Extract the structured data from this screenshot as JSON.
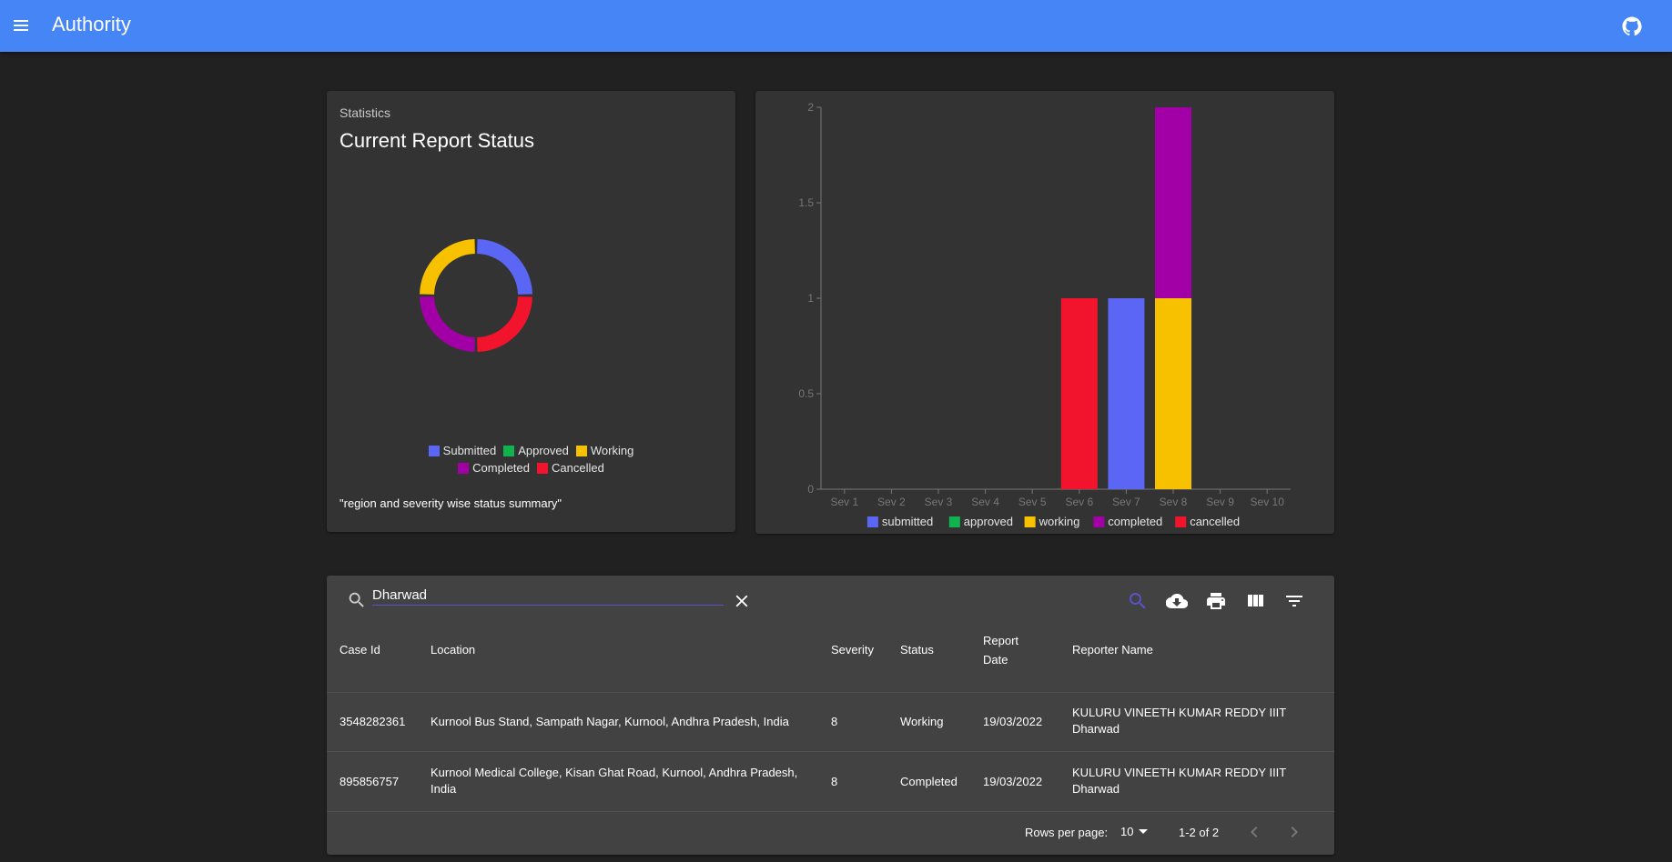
{
  "app": {
    "title": "Authority"
  },
  "stats": {
    "overline": "Statistics",
    "title": "Current Report Status",
    "caption": "\"region and severity wise status summary\"",
    "legend": [
      {
        "label": "Submitted",
        "color": "#5b66f5"
      },
      {
        "label": "Approved",
        "color": "#0fb44f"
      },
      {
        "label": "Working",
        "color": "#f7c100"
      },
      {
        "label": "Completed",
        "color": "#a200a6"
      },
      {
        "label": "Cancelled",
        "color": "#f2132d"
      }
    ]
  },
  "chart_data": [
    {
      "type": "pie",
      "title": "Current Report Status",
      "labels": [
        "Submitted",
        "Approved",
        "Working",
        "Completed",
        "Cancelled"
      ],
      "values": [
        1,
        0,
        1,
        1,
        1
      ],
      "colors": [
        "#5b66f5",
        "#0fb44f",
        "#f7c100",
        "#a200a6",
        "#f2132d"
      ]
    },
    {
      "type": "bar",
      "stacked": true,
      "categories": [
        "Sev 1",
        "Sev 2",
        "Sev 3",
        "Sev 4",
        "Sev 5",
        "Sev 6",
        "Sev 7",
        "Sev 8",
        "Sev 9",
        "Sev 10"
      ],
      "series": [
        {
          "name": "submitted",
          "color": "#5b66f5",
          "values": [
            0,
            0,
            0,
            0,
            0,
            0,
            1,
            0,
            0,
            0
          ]
        },
        {
          "name": "approved",
          "color": "#0fb44f",
          "values": [
            0,
            0,
            0,
            0,
            0,
            0,
            0,
            0,
            0,
            0
          ]
        },
        {
          "name": "working",
          "color": "#f7c100",
          "values": [
            0,
            0,
            0,
            0,
            0,
            0,
            0,
            1,
            0,
            0
          ]
        },
        {
          "name": "completed",
          "color": "#a200a6",
          "values": [
            0,
            0,
            0,
            0,
            0,
            0,
            0,
            1,
            0,
            0
          ]
        },
        {
          "name": "cancelled",
          "color": "#f2132d",
          "values": [
            0,
            0,
            0,
            0,
            0,
            1,
            0,
            0,
            0,
            0
          ]
        }
      ],
      "yticks": [
        "0",
        "0.5",
        "1",
        "1.5",
        "2"
      ],
      "ylim": [
        0,
        2
      ],
      "legend_position": "bottom"
    }
  ],
  "table": {
    "search_value": "Dharwad",
    "toolbar": [
      "search-icon",
      "download-icon",
      "print-icon",
      "view-columns-icon",
      "filter-icon"
    ],
    "columns": [
      "Case Id",
      "Location",
      "Severity",
      "Status",
      "Report Date",
      "Reporter Name"
    ],
    "rows": [
      {
        "case_id": "3548282361",
        "location": "Kurnool Bus Stand, Sampath Nagar, Kurnool, Andhra Pradesh, India",
        "severity": "8",
        "status": "Working",
        "report_date": "19/03/2022",
        "reporter": "KULURU VINEETH KUMAR REDDY IIIT Dharwad"
      },
      {
        "case_id": "895856757",
        "location": "Kurnool Medical College, Kisan Ghat Road, Kurnool, Andhra Pradesh, India",
        "severity": "8",
        "status": "Completed",
        "report_date": "19/03/2022",
        "reporter": "KULURU VINEETH KUMAR REDDY IIIT Dharwad"
      }
    ],
    "rows_per_page_label": "Rows per page:",
    "rows_per_page": "10",
    "page_info": "1-2 of 2"
  }
}
